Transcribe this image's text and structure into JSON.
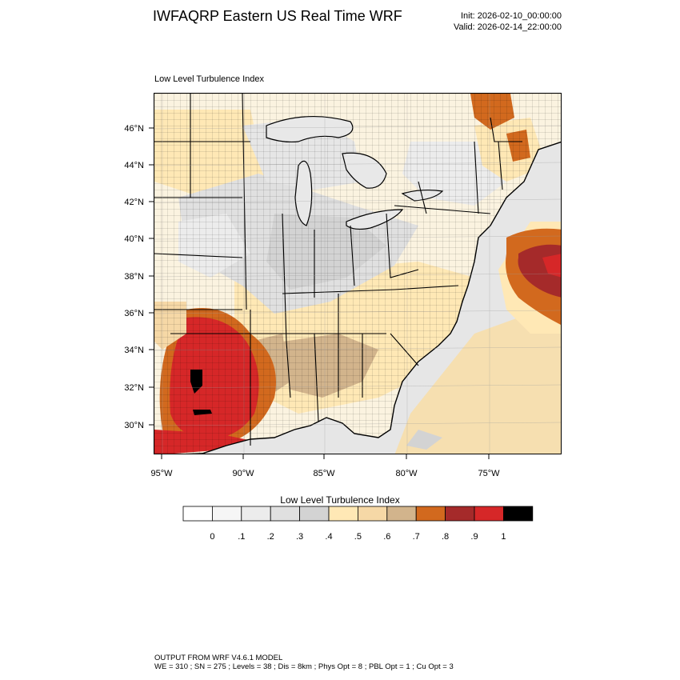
{
  "title": "IWFAQRP Eastern US Real Time WRF",
  "init_label": "Init: 2026-02-10_00:00:00",
  "valid_label": "Valid: 2026-02-14_22:00:00",
  "subtitle": "Low Level Turbulence Index",
  "lat_ticks": [
    "46°N",
    "44°N",
    "42°N",
    "40°N",
    "38°N",
    "36°N",
    "34°N",
    "32°N",
    "30°N"
  ],
  "lon_ticks": [
    "95°W",
    "90°W",
    "85°W",
    "80°W",
    "75°W"
  ],
  "colorbar": {
    "title": "Low Level Turbulence Index",
    "labels": [
      "0",
      ".1",
      ".2",
      ".3",
      ".4",
      ".5",
      ".6",
      ".7",
      ".8",
      ".9",
      "1"
    ],
    "colors": [
      "#ffffff",
      "#f6f6f6",
      "#ececec",
      "#e0e0e0",
      "#d3d3d3",
      "#ffe8b5",
      "#f6d8a6",
      "#d2b48c",
      "#d2691e",
      "#a52a2a",
      "#d62728",
      "#000000"
    ]
  },
  "legend": {
    "colors": {
      "land": "#fbf3e0",
      "water_base": "#e6e6e6",
      "lake": "#e8e8e8"
    }
  },
  "footer": {
    "line1": "OUTPUT FROM WRF V4.6.1 MODEL",
    "line2": "WE = 310 ; SN = 275 ; Levels = 38 ; Dis = 8km ; Phys Opt = 8 ; PBL Opt = 1 ; Cu Opt = 3"
  }
}
